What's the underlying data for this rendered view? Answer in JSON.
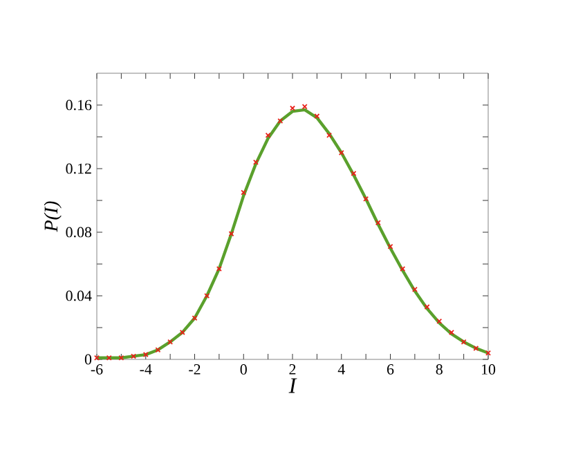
{
  "chart_data": {
    "type": "scatter",
    "xlabel": "I",
    "ylabel": "P(I)",
    "xlim": [
      -6,
      10
    ],
    "ylim": [
      0,
      0.18
    ],
    "xticks": [
      -6,
      {
        "value": -5,
        "label": null
      },
      -4,
      {
        "value": -3,
        "label": null
      },
      -2,
      {
        "value": -1,
        "label": null
      },
      0,
      {
        "value": 1,
        "label": null
      },
      2,
      {
        "value": 3,
        "label": null
      },
      4,
      {
        "value": 5,
        "label": null
      },
      6,
      {
        "value": 7,
        "label": null
      },
      8,
      {
        "value": 9,
        "label": null
      },
      10
    ],
    "yticks": [
      0,
      {
        "value": 0.02,
        "label": null
      },
      0.04,
      {
        "value": 0.06,
        "label": null
      },
      0.08,
      {
        "value": 0.1,
        "label": null
      },
      0.12,
      {
        "value": 0.14,
        "label": null
      },
      0.16
    ],
    "series": [
      {
        "marker": "cross",
        "color": "#e8201a",
        "x": [
          -6,
          -5.5,
          -5,
          -4.5,
          -4,
          -3.5,
          -3,
          -2.5,
          -2,
          -1.5,
          -1,
          -0.5,
          0,
          0.5,
          1,
          1.5,
          2,
          2.5,
          3,
          3.5,
          4,
          4.5,
          5,
          5.5,
          6,
          6.5,
          7,
          7.5,
          8,
          8.5,
          9,
          9.5,
          10
        ],
        "values": [
          0.001,
          0.001,
          0.001,
          0.002,
          0.003,
          0.006,
          0.011,
          0.017,
          0.026,
          0.04,
          0.057,
          0.079,
          0.105,
          0.124,
          0.141,
          0.15,
          0.158,
          0.159,
          0.153,
          0.141,
          0.13,
          0.117,
          0.101,
          0.086,
          0.071,
          0.057,
          0.044,
          0.033,
          0.024,
          0.017,
          0.011,
          0.007,
          0.004
        ]
      },
      {
        "type": "line",
        "marker": "none",
        "line_style": "solid",
        "color": "#5aa02c",
        "x": [
          -6,
          -5.5,
          -5,
          -4.5,
          -4,
          -3.5,
          -3,
          -2.5,
          -2,
          -1.5,
          -1,
          -0.5,
          0,
          0.5,
          1,
          1.5,
          2,
          2.5,
          3,
          3.5,
          4,
          4.5,
          5,
          5.5,
          6,
          6.5,
          7,
          7.5,
          8,
          8.5,
          9,
          9.5,
          10
        ],
        "values": [
          0.001,
          0.001,
          0.001,
          0.002,
          0.003,
          0.006,
          0.011,
          0.017,
          0.026,
          0.04,
          0.057,
          0.079,
          0.103,
          0.123,
          0.139,
          0.15,
          0.156,
          0.157,
          0.152,
          0.142,
          0.13,
          0.116,
          0.101,
          0.085,
          0.07,
          0.056,
          0.043,
          0.032,
          0.023,
          0.016,
          0.011,
          0.007,
          0.004
        ]
      }
    ]
  }
}
